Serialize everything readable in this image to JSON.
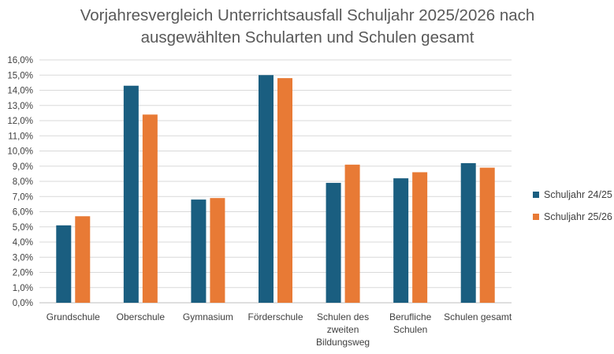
{
  "chart_data": {
    "type": "bar",
    "title": "Vorjahresvergleich Unterrichtsausfall Schuljahr 2025/2026 nach ausgewählten Schularten und Schulen gesamt",
    "title_lines": [
      "Vorjahresvergleich Unterrichtsausfall Schuljahr 2025/2026 nach",
      "ausgewählten Schularten und Schulen gesamt"
    ],
    "categories": [
      [
        "Grundschule"
      ],
      [
        "Oberschule"
      ],
      [
        "Gymnasium"
      ],
      [
        "Förderschule"
      ],
      [
        "Schulen des",
        "zweiten",
        "Bildungsweg"
      ],
      [
        "Berufliche",
        "Schulen"
      ],
      [
        "Schulen gesamt"
      ]
    ],
    "series": [
      {
        "name": "Schuljahr 24/25",
        "color": "#1a5e80",
        "values": [
          5.1,
          14.3,
          6.8,
          15.0,
          7.9,
          8.2,
          9.2
        ]
      },
      {
        "name": "Schuljahr 25/26",
        "color": "#e87a35",
        "values": [
          5.7,
          12.4,
          6.9,
          14.8,
          9.1,
          8.6,
          8.9
        ]
      }
    ],
    "y_ticks": [
      "0,0%",
      "1,0%",
      "2,0%",
      "3,0%",
      "4,0%",
      "5,0%",
      "6,0%",
      "7,0%",
      "8,0%",
      "9,0%",
      "10,0%",
      "11,0%",
      "12,0%",
      "13,0%",
      "14,0%",
      "15,0%",
      "16,0%"
    ],
    "ylim": [
      0,
      16
    ],
    "xlabel": "",
    "ylabel": "",
    "grid": true,
    "legend_position": "right"
  }
}
